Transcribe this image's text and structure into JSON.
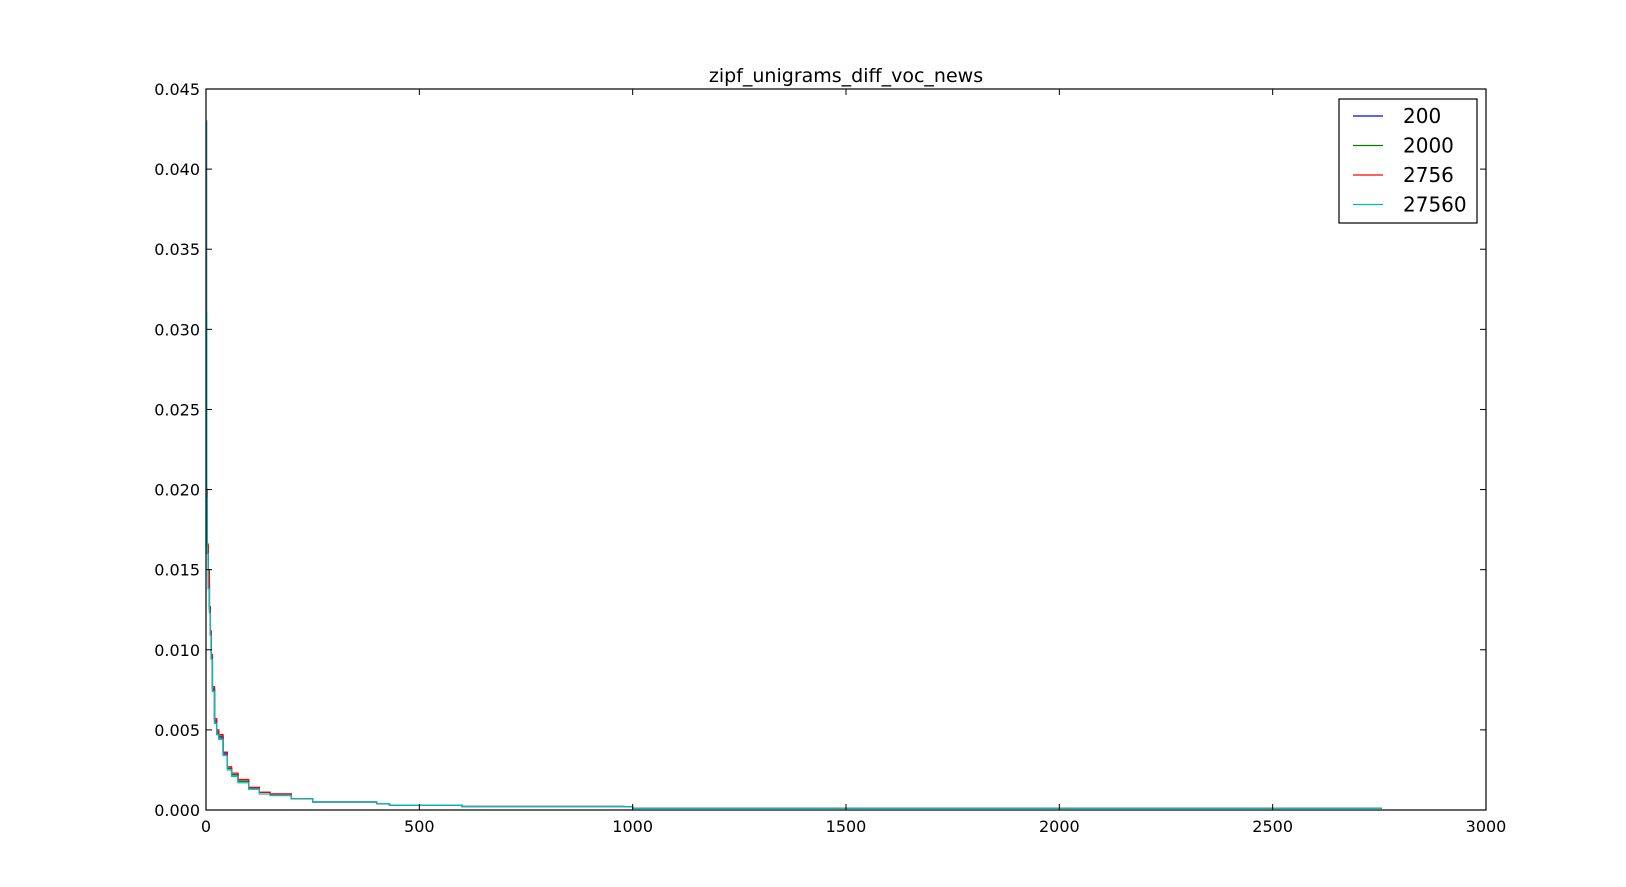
{
  "chart_data": {
    "type": "line",
    "title": "zipf_unigrams_diff_voc_news",
    "xlabel": "",
    "ylabel": "",
    "xlim": [
      0,
      3000
    ],
    "ylim": [
      0,
      0.045
    ],
    "x_ticks": [
      0,
      500,
      1000,
      1500,
      2000,
      2500,
      3000
    ],
    "x_tick_labels": [
      "0",
      "500",
      "1000",
      "1500",
      "2000",
      "2500",
      "3000"
    ],
    "y_ticks": [
      0,
      0.005,
      0.01,
      0.015,
      0.02,
      0.025,
      0.03,
      0.035,
      0.04,
      0.045
    ],
    "y_tick_labels": [
      "0.000",
      "0.005",
      "0.010",
      "0.015",
      "0.020",
      "0.025",
      "0.030",
      "0.035",
      "0.040",
      "0.045"
    ],
    "grid": false,
    "legend_position": "top-right",
    "series": [
      {
        "name": "200",
        "color": "#0000ff",
        "x": [
          0,
          1,
          2,
          3,
          5,
          8,
          10,
          12,
          15,
          20,
          25,
          30,
          40,
          50,
          60,
          75,
          100,
          125,
          150,
          200,
          250,
          300,
          400,
          430,
          580,
          600,
          980,
          1000,
          1500,
          2000,
          2500,
          2756
        ],
        "y": [
          0.043,
          0.031,
          0.02,
          0.0165,
          0.014,
          0.0125,
          0.011,
          0.0095,
          0.0075,
          0.0055,
          0.0048,
          0.0045,
          0.0035,
          0.0026,
          0.0022,
          0.0018,
          0.0014,
          0.0011,
          0.001,
          0.0007,
          0.0005,
          0.0005,
          0.0004,
          0.0003,
          0.0003,
          0.00022,
          0.0002,
          0.0001,
          0.0001,
          0.0001,
          0.0001,
          0.0001
        ]
      },
      {
        "name": "2000",
        "color": "#008000",
        "x": [
          0,
          1,
          2,
          3,
          5,
          8,
          10,
          12,
          15,
          20,
          25,
          30,
          40,
          50,
          60,
          75,
          100,
          125,
          150,
          200,
          250,
          300,
          400,
          430,
          580,
          600,
          980,
          1000,
          1500,
          2000,
          2500,
          2756
        ],
        "y": [
          0.043,
          0.031,
          0.02,
          0.0165,
          0.0145,
          0.0126,
          0.0111,
          0.0096,
          0.0076,
          0.0056,
          0.0049,
          0.0046,
          0.0036,
          0.0026,
          0.0022,
          0.0018,
          0.0014,
          0.0011,
          0.001,
          0.0007,
          0.0005,
          0.0005,
          0.0004,
          0.0003,
          0.0003,
          0.00022,
          0.0002,
          0.0001,
          0.0001,
          0.0001,
          0.0001,
          0.0001
        ]
      },
      {
        "name": "2756",
        "color": "#ff0000",
        "x": [
          0,
          1,
          2,
          3,
          5,
          8,
          10,
          12,
          15,
          20,
          25,
          30,
          40,
          50,
          60,
          75,
          100,
          125,
          150,
          200,
          250,
          300,
          400,
          430,
          580,
          600,
          980,
          1000,
          1500,
          2000,
          2500,
          2756
        ],
        "y": [
          0.043,
          0.031,
          0.02,
          0.0166,
          0.015,
          0.0127,
          0.0112,
          0.0097,
          0.0077,
          0.0057,
          0.005,
          0.0047,
          0.0036,
          0.0027,
          0.0023,
          0.0019,
          0.0014,
          0.0011,
          0.001,
          0.0007,
          0.0005,
          0.0005,
          0.0004,
          0.0003,
          0.0003,
          0.00022,
          0.0002,
          0.0001,
          0.0001,
          0.0001,
          0.0001,
          0.0001
        ]
      },
      {
        "name": "27560",
        "color": "#00bfbf",
        "x": [
          0,
          1,
          2,
          3,
          5,
          8,
          10,
          12,
          15,
          20,
          25,
          30,
          40,
          50,
          60,
          75,
          100,
          125,
          150,
          200,
          250,
          300,
          400,
          430,
          580,
          600,
          980,
          1000,
          1500,
          2000,
          2500,
          2756
        ],
        "y": [
          0.043,
          0.031,
          0.0195,
          0.016,
          0.0138,
          0.0123,
          0.0109,
          0.0094,
          0.0074,
          0.0054,
          0.0047,
          0.0044,
          0.0034,
          0.0025,
          0.0021,
          0.0017,
          0.0013,
          0.001,
          0.0009,
          0.0007,
          0.0005,
          0.0005,
          0.0004,
          0.0003,
          0.0003,
          0.00022,
          0.0002,
          0.0001,
          0.0001,
          0.0001,
          0.0001,
          0.0001
        ]
      }
    ]
  }
}
